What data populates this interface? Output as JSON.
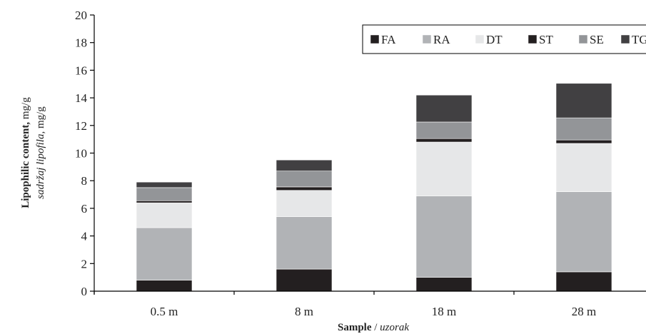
{
  "chart_data": {
    "type": "bar",
    "stacked": true,
    "categories": [
      "0.5 m",
      "8 m",
      "18 m",
      "28 m"
    ],
    "series": [
      {
        "name": "FA",
        "color": "#231f20",
        "values": [
          0.8,
          1.6,
          1.0,
          1.4
        ]
      },
      {
        "name": "RA",
        "color": "#b1b3b6",
        "values": [
          3.8,
          3.8,
          5.9,
          5.8
        ]
      },
      {
        "name": "DT",
        "color": "#e6e7e8",
        "values": [
          1.8,
          1.9,
          3.9,
          3.5
        ]
      },
      {
        "name": "ST",
        "color": "#231f20",
        "values": [
          0.15,
          0.25,
          0.25,
          0.25
        ]
      },
      {
        "name": "SE",
        "color": "#939598",
        "values": [
          0.95,
          1.15,
          1.2,
          1.6
        ]
      },
      {
        "name": "TG",
        "color": "#414042",
        "values": [
          0.4,
          0.8,
          1.95,
          2.5
        ]
      }
    ],
    "ylim": [
      0,
      20
    ],
    "yticks": [
      "0",
      "2",
      "4",
      "6",
      "8",
      "10",
      "12",
      "14",
      "16",
      "18",
      "20"
    ],
    "ylabel_bold": "Lipophilic content,",
    "ylabel_unit": "mg/g",
    "ylabel_italic": "sadržaj lipofila,",
    "ylabel_italic_unit": "mg/g",
    "xlabel_bold": "Sample",
    "xlabel_sep": "/",
    "xlabel_italic": "uzorak",
    "grid": false,
    "legend_position": "top-right"
  }
}
